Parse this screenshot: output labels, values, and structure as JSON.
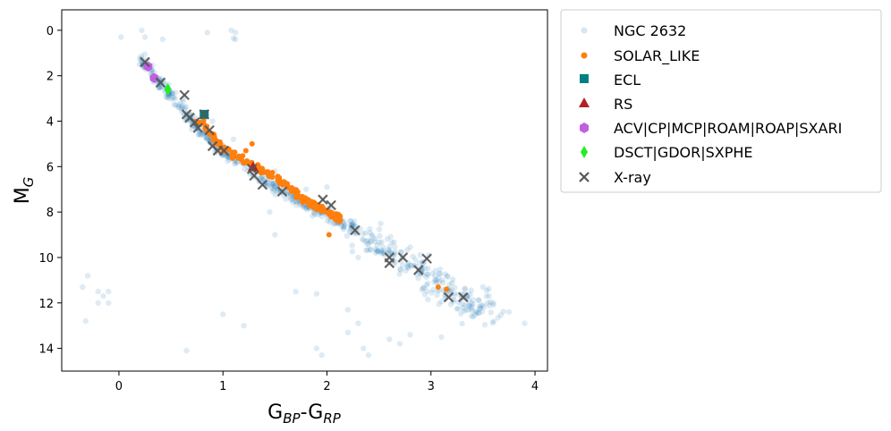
{
  "chart_data": {
    "type": "scatter",
    "title": "",
    "xlabel_main": "G",
    "xlabel_sub1": "BP",
    "xlabel_sep": "-G",
    "xlabel_sub2": "RP",
    "ylabel_main": "M",
    "ylabel_sub": "G",
    "xlim": [
      -0.55,
      4.12
    ],
    "ylim": [
      15.0,
      -0.9
    ],
    "y_inverted": true,
    "xticks": [
      0,
      1,
      2,
      3,
      4
    ],
    "xtick_labels": [
      "0",
      "1",
      "2",
      "3",
      "4"
    ],
    "yticks": [
      0,
      2,
      4,
      6,
      8,
      10,
      12,
      14
    ],
    "ytick_labels": [
      "0",
      "2",
      "4",
      "6",
      "8",
      "10",
      "12",
      "14"
    ],
    "grid": false,
    "legend_position": "outside-right",
    "colors": {
      "ngc2632": "#1f77b4",
      "solar_like": "#ff7f0e",
      "ecl": "#008080",
      "rs": "#b22222",
      "acv": "#c060e0",
      "dsct": "#22ee22",
      "xray": "#555555"
    },
    "series": [
      {
        "name": "NGC 2632",
        "marker": "circle",
        "note": "background cluster members; generated along sequence",
        "sequence": [
          [
            0.22,
            1.3
          ],
          [
            0.35,
            2.1
          ],
          [
            0.5,
            2.9
          ],
          [
            0.65,
            3.7
          ],
          [
            0.8,
            4.5
          ],
          [
            1.0,
            5.3
          ],
          [
            1.2,
            5.9
          ],
          [
            1.4,
            6.6
          ],
          [
            1.6,
            7.2
          ],
          [
            1.8,
            7.7
          ],
          [
            2.0,
            8.1
          ],
          [
            2.2,
            8.6
          ],
          [
            2.4,
            9.2
          ],
          [
            2.6,
            9.8
          ],
          [
            2.8,
            10.4
          ],
          [
            3.0,
            11.0
          ],
          [
            3.2,
            11.6
          ],
          [
            3.4,
            12.1
          ],
          [
            3.55,
            12.5
          ]
        ],
        "outliers": [
          [
            0.02,
            0.3
          ],
          [
            0.22,
            0.0
          ],
          [
            0.25,
            0.3
          ],
          [
            0.42,
            0.4
          ],
          [
            0.85,
            0.1
          ],
          [
            1.08,
            0.0
          ],
          [
            1.12,
            0.1
          ],
          [
            1.1,
            0.35
          ],
          [
            1.12,
            0.4
          ],
          [
            -0.3,
            10.8
          ],
          [
            -0.35,
            11.3
          ],
          [
            -0.2,
            11.5
          ],
          [
            -0.15,
            11.7
          ],
          [
            -0.1,
            12.0
          ],
          [
            -0.2,
            12.0
          ],
          [
            -0.1,
            11.5
          ],
          [
            -0.32,
            12.8
          ],
          [
            0.65,
            14.1
          ],
          [
            1.0,
            12.5
          ],
          [
            1.2,
            13.0
          ],
          [
            1.9,
            14.0
          ],
          [
            1.95,
            14.3
          ],
          [
            2.2,
            12.3
          ],
          [
            2.3,
            12.9
          ],
          [
            2.35,
            14.0
          ],
          [
            2.4,
            14.3
          ],
          [
            2.6,
            13.6
          ],
          [
            2.7,
            13.8
          ],
          [
            3.9,
            12.9
          ],
          [
            3.75,
            12.4
          ],
          [
            1.5,
            9.0
          ],
          [
            1.9,
            11.6
          ],
          [
            2.3,
            10.0
          ],
          [
            1.5,
            6.2
          ],
          [
            2.0,
            6.9
          ],
          [
            1.45,
            8.0
          ],
          [
            3.1,
            13.5
          ],
          [
            2.8,
            13.4
          ],
          [
            2.2,
            13.3
          ],
          [
            1.7,
            11.5
          ],
          [
            1.6,
            6.8
          ],
          [
            0.9,
            4.0
          ],
          [
            1.1,
            4.8
          ],
          [
            3.5,
            11.3
          ],
          [
            3.6,
            12.0
          ],
          [
            1.8,
            7.0
          ]
        ]
      },
      {
        "name": "SOLAR_LIKE",
        "marker": "circle",
        "sequence": [
          [
            0.75,
            3.9
          ],
          [
            0.85,
            4.4
          ],
          [
            0.95,
            4.9
          ],
          [
            1.05,
            5.3
          ],
          [
            1.15,
            5.6
          ],
          [
            1.25,
            5.85
          ],
          [
            1.35,
            6.1
          ],
          [
            1.45,
            6.35
          ],
          [
            1.55,
            6.65
          ],
          [
            1.65,
            6.95
          ],
          [
            1.75,
            7.3
          ],
          [
            1.85,
            7.6
          ],
          [
            1.95,
            7.85
          ],
          [
            2.05,
            8.1
          ],
          [
            2.15,
            8.35
          ]
        ],
        "extra": [
          [
            3.07,
            11.3
          ],
          [
            3.15,
            11.4
          ],
          [
            1.22,
            5.3
          ],
          [
            1.28,
            5.0
          ],
          [
            2.02,
            9.0
          ]
        ]
      },
      {
        "name": "ECL",
        "marker": "square",
        "points": [
          [
            0.82,
            3.7
          ]
        ]
      },
      {
        "name": "RS",
        "marker": "triangle",
        "points": [
          [
            1.29,
            6.0
          ]
        ]
      },
      {
        "name": "ACV|CP|MCP|ROAM|ROAP|SXARI",
        "marker": "hexagon",
        "points": [
          [
            0.28,
            1.6
          ],
          [
            0.34,
            2.1
          ]
        ]
      },
      {
        "name": "DSCT|GDOR|SXPHE",
        "marker": "diamond",
        "points": [
          [
            0.47,
            2.6
          ]
        ]
      },
      {
        "name": "X-ray",
        "marker": "x",
        "points": [
          [
            0.25,
            1.4
          ],
          [
            0.4,
            2.3
          ],
          [
            0.63,
            2.85
          ],
          [
            0.82,
            3.7
          ],
          [
            0.65,
            3.7
          ],
          [
            0.68,
            3.85
          ],
          [
            0.73,
            4.05
          ],
          [
            0.76,
            4.3
          ],
          [
            0.87,
            4.4
          ],
          [
            0.9,
            5.1
          ],
          [
            0.95,
            5.3
          ],
          [
            1.01,
            5.3
          ],
          [
            1.28,
            6.1
          ],
          [
            1.3,
            6.4
          ],
          [
            1.38,
            6.8
          ],
          [
            1.57,
            7.1
          ],
          [
            1.96,
            7.45
          ],
          [
            2.04,
            7.7
          ],
          [
            2.27,
            8.8
          ],
          [
            2.6,
            10.0
          ],
          [
            2.6,
            10.25
          ],
          [
            2.73,
            10.0
          ],
          [
            2.88,
            10.55
          ],
          [
            2.96,
            10.05
          ],
          [
            3.17,
            11.75
          ],
          [
            3.31,
            11.75
          ]
        ]
      }
    ]
  }
}
